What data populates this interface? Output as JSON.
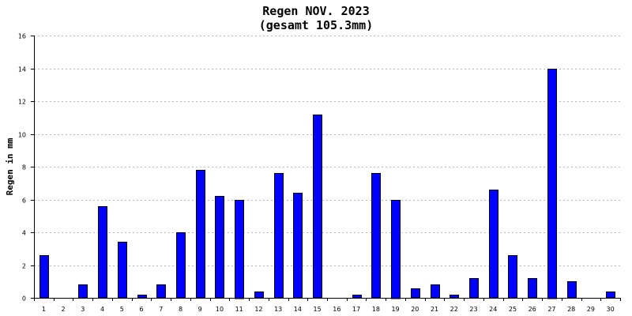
{
  "chart_data": {
    "type": "bar",
    "title": "Regen NOV. 2023",
    "subtitle": "(gesamt 105.3mm)",
    "xlabel": "",
    "ylabel": "Regen in mm",
    "categories": [
      "1",
      "2",
      "3",
      "4",
      "5",
      "6",
      "7",
      "8",
      "9",
      "10",
      "11",
      "12",
      "13",
      "14",
      "15",
      "16",
      "17",
      "18",
      "19",
      "20",
      "21",
      "22",
      "23",
      "24",
      "25",
      "26",
      "27",
      "28",
      "29",
      "30"
    ],
    "values": [
      2.6,
      0,
      0.8,
      5.6,
      3.4,
      0.2,
      0.8,
      4.0,
      7.8,
      6.2,
      6.0,
      0.4,
      7.6,
      6.4,
      11.2,
      0,
      0.2,
      7.6,
      6.0,
      0.6,
      0.8,
      0.2,
      1.2,
      6.6,
      2.6,
      1.2,
      14.0,
      1.0,
      0,
      0.4
    ],
    "ylim": [
      0,
      16
    ],
    "yticks": [
      0,
      2,
      4,
      6,
      8,
      10,
      12,
      14,
      16
    ],
    "grid": true,
    "bar_color": "#0000ff"
  }
}
